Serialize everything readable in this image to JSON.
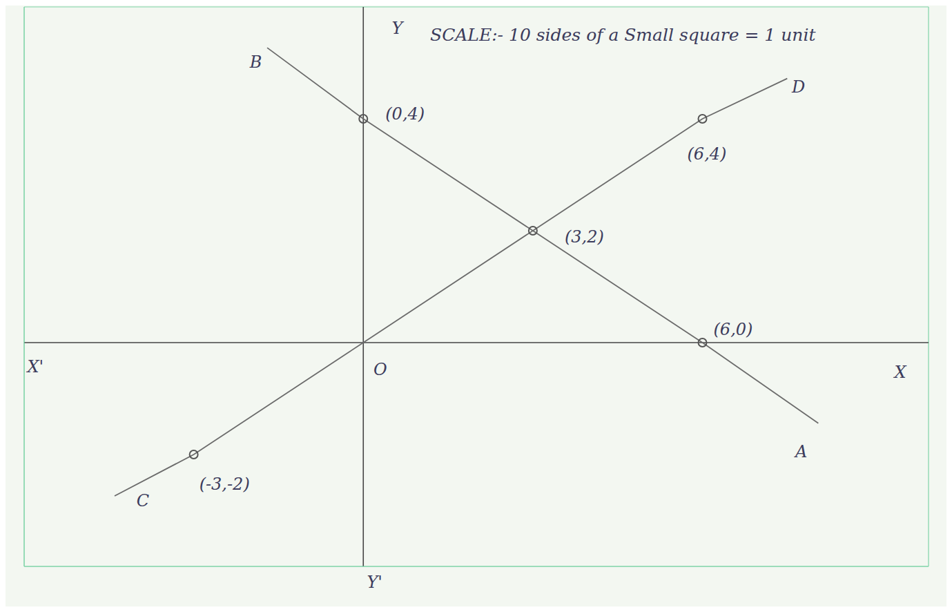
{
  "chart_data": {
    "type": "line",
    "title": "SCALE:- 10 sides of a Small square = 1 unit",
    "xlim": [
      -6,
      10
    ],
    "ylim": [
      -4,
      6
    ],
    "xticks": [
      -6,
      -5,
      -4,
      -3,
      -2,
      -1,
      0,
      1,
      2,
      3,
      4,
      5,
      6,
      7,
      8,
      9,
      10
    ],
    "yticks": [
      -4,
      -3,
      -2,
      -1,
      0,
      1,
      2,
      3,
      4,
      5,
      6
    ],
    "grid": true,
    "tick_labels": false,
    "color": "#6b6b6b",
    "series": [
      {
        "x": [
          -1.7,
          0,
          3,
          6,
          8.05
        ],
        "values": [
          5.27,
          4,
          2,
          0,
          -1.44
        ],
        "line_style": "solid"
      },
      {
        "x": [
          -4.4,
          -3,
          0,
          3,
          6,
          7.5
        ],
        "values": [
          -2.74,
          -2,
          0,
          2,
          4,
          4.72
        ],
        "line_style": "solid"
      }
    ],
    "annotations": [
      {
        "text": "(0,4)",
        "x": 0,
        "y": 4,
        "marker": "circle"
      },
      {
        "text": "(6,4)",
        "x": 6,
        "y": 4,
        "marker": "circle"
      },
      {
        "text": "(3,2)",
        "x": 3,
        "y": 2,
        "marker": "circle"
      },
      {
        "text": "(6,0)",
        "x": 6,
        "y": 0,
        "marker": "circle"
      },
      {
        "text": "(-3,-2)",
        "x": -3,
        "y": -2,
        "marker": "circle"
      },
      {
        "text": "B",
        "x": -1.9,
        "y": 5.0
      },
      {
        "text": "A",
        "x": 7.75,
        "y": -1.97
      },
      {
        "text": "C",
        "x": -3.9,
        "y": -2.85
      },
      {
        "text": "D",
        "x": 7.7,
        "y": 4.55
      },
      {
        "text": "X'",
        "x": -5.8,
        "y": -0.45
      },
      {
        "text": "X",
        "x": 9.5,
        "y": -0.55
      },
      {
        "text": "Y",
        "x": 0.6,
        "y": 5.6
      },
      {
        "text": "Y'",
        "x": 0.2,
        "y": -4.3
      },
      {
        "text": "O",
        "x": 0.3,
        "y": -0.5
      }
    ]
  }
}
